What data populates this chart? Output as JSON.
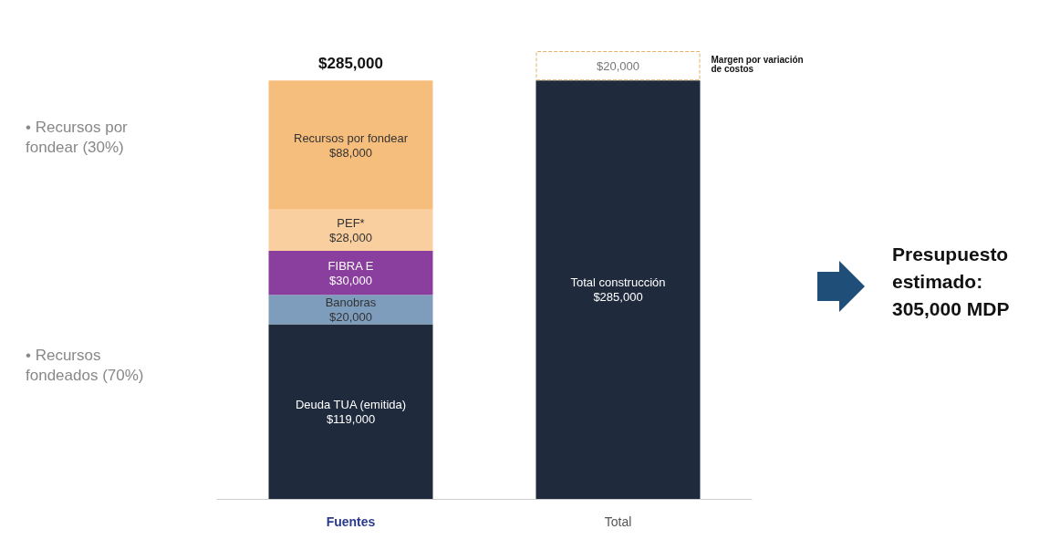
{
  "chart_data": {
    "type": "bar",
    "stacked": true,
    "categories": [
      "Fuentes",
      "Total"
    ],
    "series": [
      {
        "name": "Deuda TUA (emitida)",
        "color": "#1f2a3d",
        "values": [
          119000,
          null
        ],
        "value_labels": [
          "$119,000",
          null
        ]
      },
      {
        "name": "Banobras",
        "color": "#7e9dbd",
        "values": [
          20000,
          null
        ],
        "value_labels": [
          "$20,000",
          null
        ]
      },
      {
        "name": "FIBRA E",
        "color": "#8a3f9e",
        "values": [
          30000,
          null
        ],
        "value_labels": [
          "$30,000",
          null
        ]
      },
      {
        "name": "PEF*",
        "color": "#f9cf9f",
        "values": [
          28000,
          null
        ],
        "value_labels": [
          "$28,000",
          null
        ]
      },
      {
        "name": "Recursos por fondear",
        "color": "#f6be7d",
        "values": [
          88000,
          null
        ],
        "value_labels": [
          "$88,000",
          null
        ]
      },
      {
        "name": "Total construcción",
        "color": "#1f2a3d",
        "values": [
          null,
          285000
        ],
        "value_labels": [
          null,
          "$285,000"
        ]
      },
      {
        "name": "Margen por variación de costos",
        "color": "#ffffff",
        "values": [
          null,
          20000
        ],
        "value_labels": [
          null,
          "$20,000"
        ]
      }
    ],
    "ylim": [
      0,
      305000
    ],
    "totals": [
      "$285,000",
      null
    ],
    "grid": false,
    "legend": false,
    "annotations": [
      "• Recursos por fondear (30%)",
      "• Recursos fondeados (70%)",
      "Presupuesto estimado: 305,000 MDP"
    ]
  }
}
